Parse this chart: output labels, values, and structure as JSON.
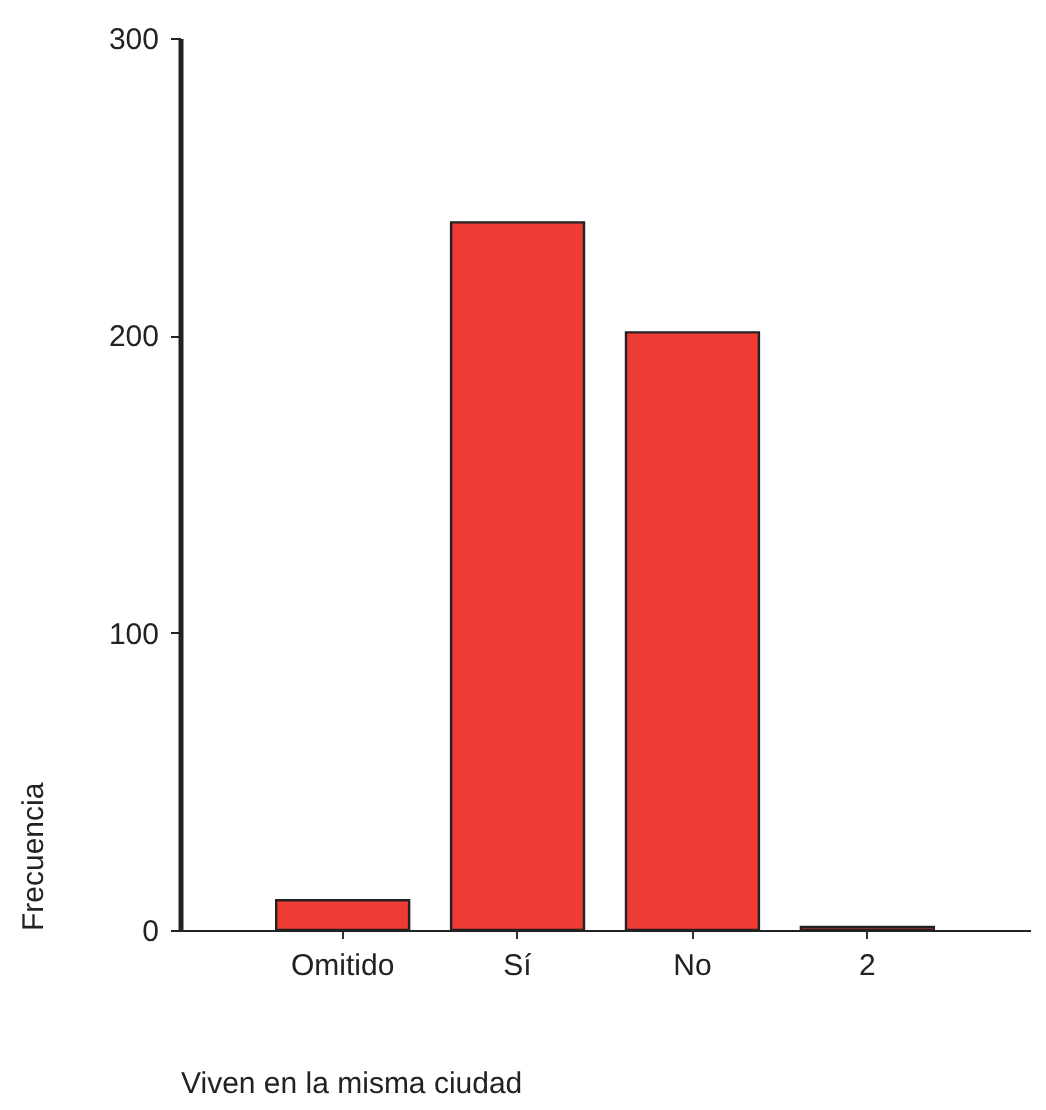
{
  "chart_data": {
    "type": "bar",
    "xlabel": "Viven en la misma ciudad",
    "ylabel": "Frecuencia",
    "categories": [
      "Omitido",
      "Sí",
      "No",
      "2"
    ],
    "values": [
      10,
      238,
      201,
      1
    ],
    "color": "#ee3b33",
    "ylim": [
      0,
      300
    ],
    "yticks": [
      0,
      100,
      200,
      300
    ],
    "grid": false
  }
}
